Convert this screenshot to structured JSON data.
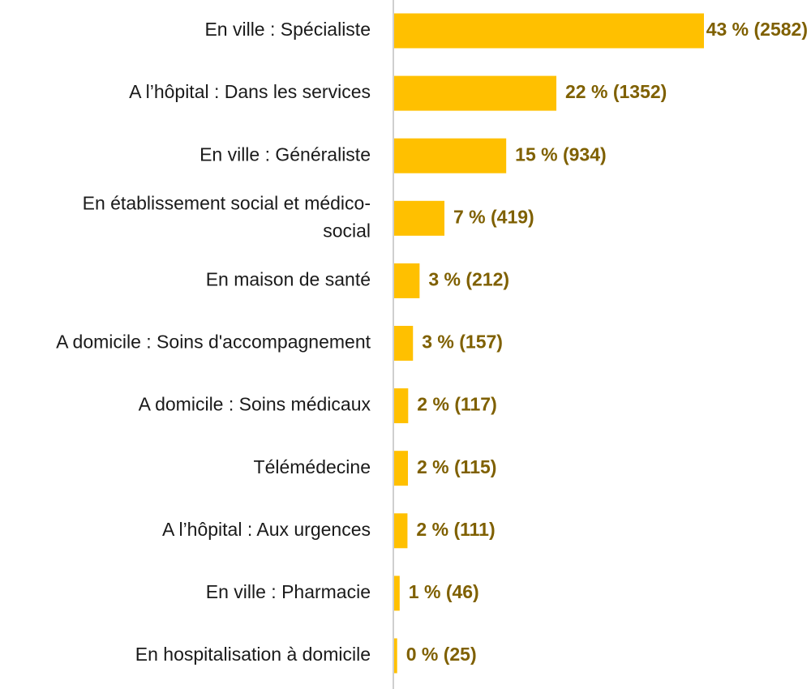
{
  "chart_data": {
    "type": "bar",
    "orientation": "horizontal",
    "categories": [
      "En ville : Spécialiste",
      "A l’hôpital : Dans les services",
      "En ville : Généraliste",
      "En établissement social et médico-social",
      "En maison de santé",
      "A domicile : Soins d'accompagnement",
      "A domicile : Soins médicaux",
      "Télémédecine",
      "A l’hôpital : Aux urgences",
      "En ville : Pharmacie",
      "En hospitalisation à domicile"
    ],
    "category_lines": [
      [
        "En ville : Spécialiste"
      ],
      [
        "A l’hôpital : Dans les services"
      ],
      [
        "En ville : Généraliste"
      ],
      [
        "En établissement social et médico-",
        "social"
      ],
      [
        "En maison de santé"
      ],
      [
        "A domicile : Soins d'accompagnement"
      ],
      [
        "A domicile : Soins médicaux"
      ],
      [
        "Télémédecine"
      ],
      [
        "A l’hôpital : Aux urgences"
      ],
      [
        "En ville : Pharmacie"
      ],
      [
        "En hospitalisation à domicile"
      ]
    ],
    "values": [
      2582,
      1352,
      934,
      419,
      212,
      157,
      117,
      115,
      111,
      46,
      25
    ],
    "data_labels": [
      "43 % (2582)",
      "22 % (1352)",
      "15 % (934)",
      "7 % (419)",
      "3 % (212)",
      "3 % (157)",
      "2 % (117)",
      "2 % (115)",
      "2 % (111)",
      "1 % (46)",
      "0 % (25)"
    ],
    "title": "",
    "xlabel": "",
    "ylabel": "",
    "xlim": [
      0,
      2582
    ],
    "grid": false,
    "legend": "none",
    "colors": {
      "bar": "#FFC000",
      "label": "#7F6000",
      "axis": "#BFBFBF",
      "category_text": "#1a1a1a"
    }
  }
}
